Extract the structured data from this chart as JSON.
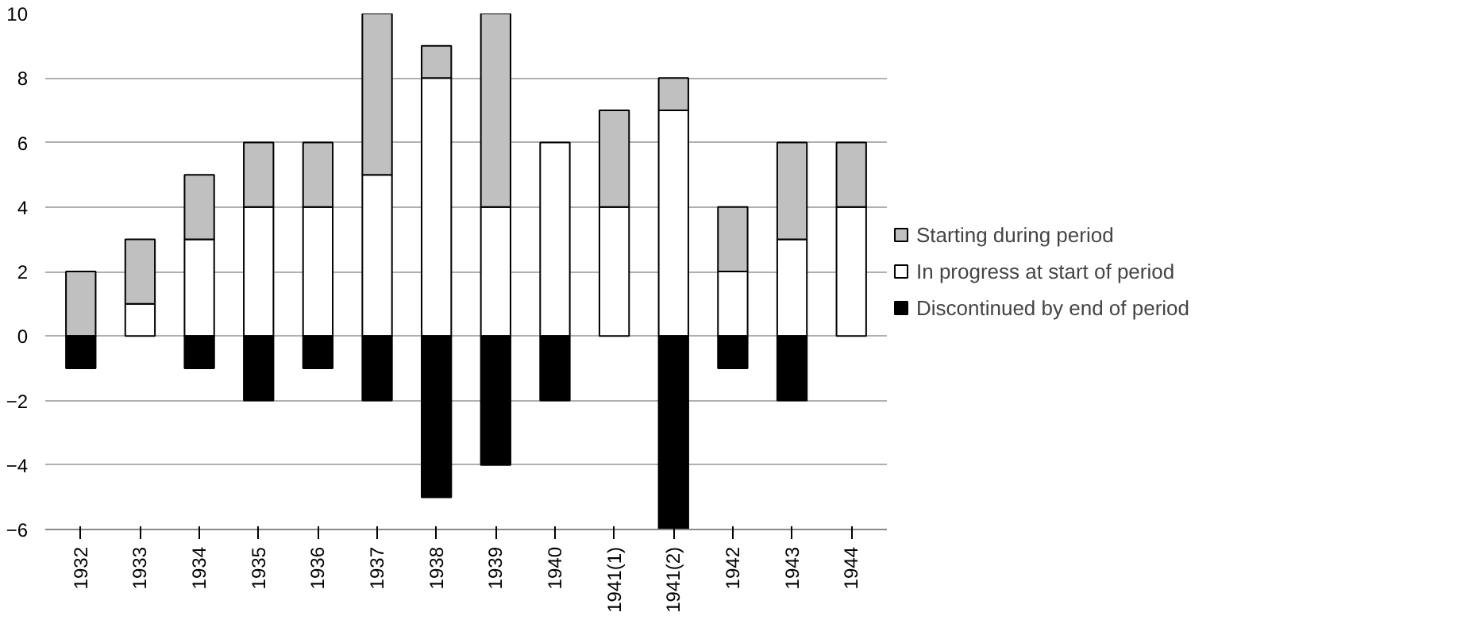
{
  "chart_data": {
    "type": "bar",
    "stacked": true,
    "categories": [
      "1932",
      "1933",
      "1934",
      "1935",
      "1936",
      "1937",
      "1938",
      "1939",
      "1940",
      "1941(1)",
      "1941(2)",
      "1942",
      "1943",
      "1944"
    ],
    "series": [
      {
        "name": "In progress at start of period",
        "color": "#ffffff",
        "values": [
          0,
          1,
          3,
          4,
          4,
          5,
          8,
          4,
          6,
          4,
          7,
          2,
          3,
          4
        ]
      },
      {
        "name": "Starting during period",
        "color": "#c0c0c0",
        "values": [
          2,
          2,
          2,
          2,
          2,
          5,
          1,
          6,
          0,
          3,
          1,
          2,
          3,
          2
        ]
      },
      {
        "name": "Discontinued by end of period",
        "color": "#000000",
        "values": [
          -1,
          0,
          -1,
          -2,
          -1,
          -2,
          -5,
          -4,
          -2,
          0,
          -6,
          -1,
          -2,
          0
        ]
      }
    ],
    "ylim": [
      -6,
      10
    ],
    "yticks": [
      -6,
      -4,
      -2,
      0,
      2,
      4,
      6,
      8,
      10
    ],
    "grid": "y",
    "legend": "right"
  }
}
